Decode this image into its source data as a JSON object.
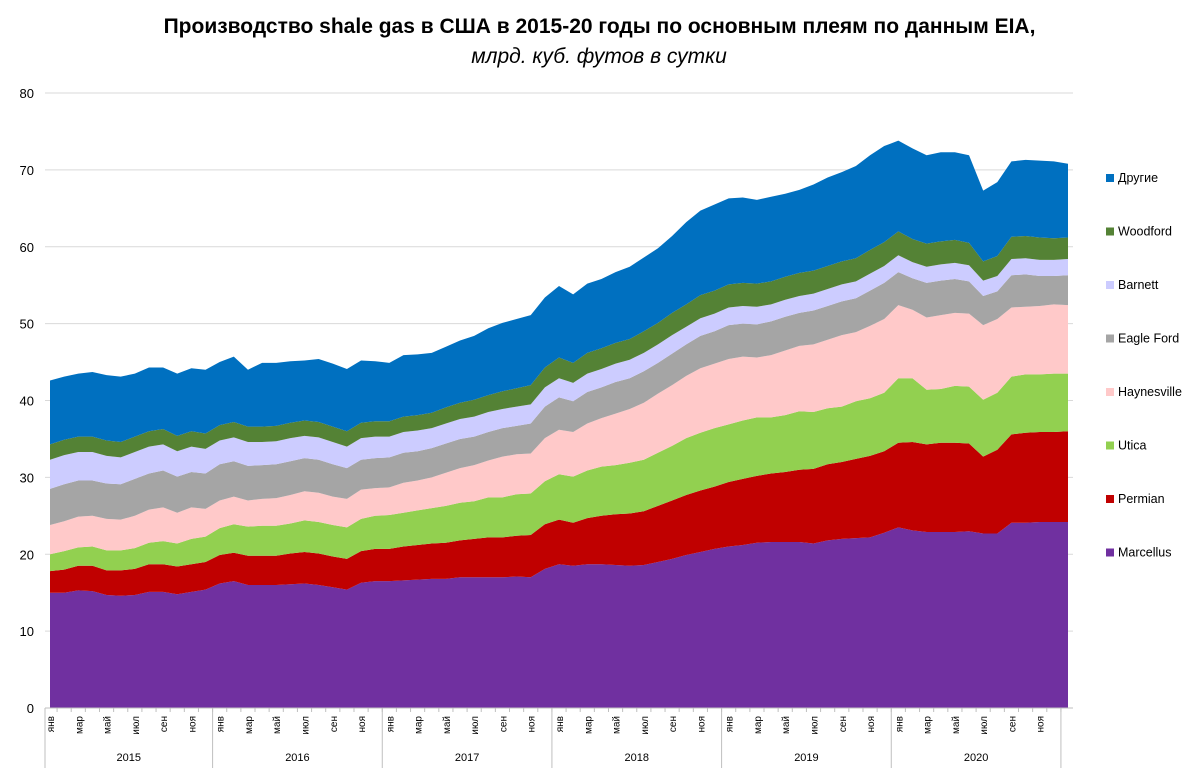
{
  "title": {
    "main": "Производство shale gas в США в 2015-20 годы по основным плеям по данным EIA,",
    "sub": "млрд. куб. футов в сутки"
  },
  "chart_data": {
    "type": "area",
    "stacked": true,
    "title": "Производство shale gas в США в 2015-20 годы по основным плеям по данным EIA,",
    "subtitle": "млрд. куб. футов в сутки",
    "ylim": [
      0,
      80
    ],
    "yticks": [
      0,
      10,
      20,
      30,
      40,
      50,
      60,
      70,
      80
    ],
    "grid": true,
    "legend_position": "right",
    "month_tick_labels": [
      "янв",
      "мар",
      "май",
      "июл",
      "сен",
      "ноя"
    ],
    "years": [
      "2015",
      "2016",
      "2017",
      "2018",
      "2019",
      "2020"
    ],
    "series": [
      {
        "name": "Marcellus",
        "color": "#7030A0",
        "values": [
          15.0,
          15.0,
          15.3,
          15.2,
          14.7,
          14.6,
          14.7,
          15.1,
          15.1,
          14.8,
          15.1,
          15.4,
          16.2,
          16.5,
          16.0,
          16.0,
          16.0,
          16.1,
          16.2,
          16.0,
          15.7,
          15.4,
          16.3,
          16.5,
          16.5,
          16.6,
          16.7,
          16.8,
          16.8,
          17.0,
          17.0,
          17.0,
          17.0,
          17.1,
          17.0,
          18.1,
          18.7,
          18.5,
          18.7,
          18.7,
          18.6,
          18.5,
          18.6,
          19.0,
          19.4,
          19.9,
          20.3,
          20.7,
          21.0,
          21.2,
          21.5,
          21.6,
          21.6,
          21.6,
          21.4,
          21.8,
          22.0,
          22.1,
          22.2,
          22.8,
          23.5,
          23.1,
          22.9,
          22.9,
          22.9,
          23.0,
          22.7,
          22.7,
          24.1,
          24.1,
          24.2,
          24.2,
          24.2
        ]
      },
      {
        "name": "Permian",
        "color": "#C00000",
        "values": [
          2.8,
          3.0,
          3.2,
          3.3,
          3.2,
          3.3,
          3.4,
          3.6,
          3.6,
          3.6,
          3.6,
          3.6,
          3.7,
          3.7,
          3.8,
          3.8,
          3.8,
          4.0,
          4.1,
          4.1,
          4.0,
          4.0,
          4.1,
          4.2,
          4.2,
          4.4,
          4.5,
          4.6,
          4.7,
          4.8,
          5.0,
          5.2,
          5.2,
          5.3,
          5.5,
          5.8,
          5.8,
          5.6,
          6.0,
          6.3,
          6.6,
          6.8,
          7.0,
          7.3,
          7.6,
          7.8,
          8.0,
          8.1,
          8.4,
          8.6,
          8.7,
          8.9,
          9.1,
          9.4,
          9.7,
          9.9,
          10.0,
          10.3,
          10.6,
          10.6,
          11.0,
          11.5,
          11.4,
          11.6,
          11.6,
          11.4,
          10.0,
          10.9,
          11.5,
          11.7,
          11.7,
          11.7,
          11.8
        ]
      },
      {
        "name": "Utica",
        "color": "#92D050",
        "values": [
          2.2,
          2.4,
          2.4,
          2.5,
          2.6,
          2.6,
          2.7,
          2.8,
          3.0,
          3.0,
          3.3,
          3.3,
          3.5,
          3.7,
          3.8,
          3.9,
          3.9,
          3.9,
          4.1,
          4.1,
          4.1,
          4.1,
          4.2,
          4.3,
          4.4,
          4.4,
          4.5,
          4.6,
          4.8,
          4.9,
          4.9,
          5.2,
          5.2,
          5.4,
          5.4,
          5.6,
          5.9,
          6.0,
          6.2,
          6.4,
          6.4,
          6.6,
          6.7,
          6.9,
          7.1,
          7.4,
          7.5,
          7.6,
          7.5,
          7.6,
          7.6,
          7.3,
          7.4,
          7.6,
          7.4,
          7.3,
          7.2,
          7.5,
          7.5,
          7.6,
          8.4,
          8.3,
          7.1,
          7.0,
          7.4,
          7.4,
          7.4,
          7.4,
          7.5,
          7.6,
          7.5,
          7.6,
          7.5
        ]
      },
      {
        "name": "Haynesville",
        "color": "#FFC9C9",
        "values": [
          3.8,
          3.9,
          4.0,
          4.0,
          4.1,
          4.0,
          4.2,
          4.3,
          4.4,
          4.0,
          4.1,
          3.6,
          3.6,
          3.6,
          3.4,
          3.5,
          3.6,
          3.7,
          3.8,
          3.8,
          3.7,
          3.7,
          3.8,
          3.6,
          3.6,
          3.9,
          3.9,
          4.0,
          4.3,
          4.5,
          4.7,
          4.8,
          5.3,
          5.2,
          5.2,
          5.6,
          5.8,
          5.8,
          6.1,
          6.3,
          6.7,
          7.0,
          7.4,
          7.7,
          7.9,
          8.1,
          8.4,
          8.4,
          8.5,
          8.3,
          7.8,
          8.1,
          8.4,
          8.5,
          8.8,
          8.9,
          9.3,
          9.0,
          9.4,
          9.6,
          9.5,
          8.9,
          9.4,
          9.6,
          9.5,
          9.5,
          9.7,
          9.6,
          9.0,
          8.8,
          8.9,
          9.0,
          8.9
        ]
      },
      {
        "name": "Eagle Ford",
        "color": "#A5A5A5",
        "values": [
          4.7,
          4.8,
          4.7,
          4.6,
          4.6,
          4.6,
          4.8,
          4.7,
          4.8,
          4.7,
          4.6,
          4.6,
          4.7,
          4.6,
          4.5,
          4.4,
          4.4,
          4.4,
          4.3,
          4.3,
          4.2,
          4.0,
          3.9,
          3.9,
          3.9,
          3.9,
          3.8,
          3.8,
          3.8,
          3.8,
          3.7,
          3.7,
          3.7,
          3.7,
          3.9,
          4.1,
          4.2,
          4.0,
          4.1,
          4.0,
          4.1,
          4.0,
          4.1,
          4.0,
          4.1,
          4.1,
          4.2,
          4.2,
          4.4,
          4.3,
          4.3,
          4.4,
          4.4,
          4.3,
          4.4,
          4.4,
          4.4,
          4.4,
          4.6,
          4.7,
          4.3,
          4.1,
          4.5,
          4.5,
          4.4,
          4.2,
          3.8,
          3.6,
          4.2,
          4.2,
          3.9,
          3.7,
          3.9
        ]
      },
      {
        "name": "Barnett",
        "color": "#CCCCFF",
        "values": [
          3.8,
          3.8,
          3.7,
          3.7,
          3.6,
          3.5,
          3.5,
          3.5,
          3.4,
          3.3,
          3.3,
          3.2,
          3.1,
          3.1,
          3.1,
          3.0,
          3.0,
          3.0,
          2.9,
          2.9,
          2.9,
          2.8,
          2.8,
          2.8,
          2.7,
          2.7,
          2.7,
          2.6,
          2.6,
          2.6,
          2.6,
          2.6,
          2.5,
          2.5,
          2.5,
          2.5,
          2.5,
          2.4,
          2.4,
          2.4,
          2.4,
          2.4,
          2.4,
          2.4,
          2.4,
          2.3,
          2.3,
          2.3,
          2.3,
          2.3,
          2.3,
          2.2,
          2.2,
          2.2,
          2.2,
          2.2,
          2.2,
          2.2,
          2.2,
          2.2,
          2.2,
          2.1,
          2.1,
          2.1,
          2.1,
          2.1,
          2.0,
          2.0,
          2.1,
          2.1,
          2.1,
          2.1,
          2.1
        ]
      },
      {
        "name": "Woodford",
        "color": "#548235",
        "values": [
          2.0,
          2.0,
          2.0,
          2.0,
          2.0,
          2.0,
          2.0,
          2.0,
          2.0,
          2.0,
          2.0,
          2.0,
          2.0,
          2.0,
          2.0,
          2.0,
          2.0,
          2.0,
          2.0,
          2.0,
          2.0,
          2.0,
          2.0,
          2.0,
          2.0,
          2.0,
          2.0,
          2.0,
          2.1,
          2.1,
          2.2,
          2.2,
          2.3,
          2.4,
          2.5,
          2.6,
          2.7,
          2.6,
          2.7,
          2.7,
          2.7,
          2.7,
          2.8,
          2.8,
          2.9,
          2.9,
          3.0,
          3.0,
          3.0,
          3.0,
          3.0,
          3.0,
          3.0,
          3.0,
          3.0,
          3.0,
          3.0,
          3.0,
          3.1,
          3.1,
          3.1,
          3.0,
          3.0,
          3.0,
          3.0,
          2.9,
          2.5,
          2.6,
          2.9,
          2.9,
          2.9,
          2.8,
          2.8
        ]
      },
      {
        "name": "Другие",
        "color": "#0070C0",
        "values": [
          8.3,
          8.2,
          8.2,
          8.4,
          8.5,
          8.5,
          8.2,
          8.3,
          8.0,
          8.1,
          8.2,
          8.3,
          8.2,
          8.5,
          7.4,
          8.3,
          8.2,
          8.0,
          7.8,
          8.2,
          8.2,
          8.1,
          8.1,
          7.8,
          7.6,
          8.0,
          7.9,
          7.8,
          7.9,
          8.1,
          8.3,
          8.7,
          8.9,
          9.0,
          9.1,
          9.1,
          9.3,
          8.9,
          9.0,
          9.0,
          9.2,
          9.4,
          9.6,
          9.7,
          10.0,
          10.7,
          11.0,
          11.2,
          11.2,
          11.1,
          10.9,
          11.0,
          10.8,
          10.8,
          11.2,
          11.5,
          11.6,
          12.0,
          12.3,
          12.5,
          11.8,
          11.8,
          11.5,
          11.6,
          11.4,
          11.4,
          9.2,
          9.6,
          9.8,
          9.9,
          10.0,
          10.0,
          9.6
        ]
      }
    ]
  }
}
